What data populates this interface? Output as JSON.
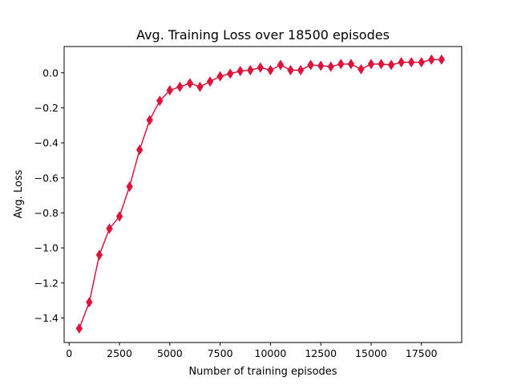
{
  "chart_data": {
    "type": "line",
    "title": "Avg. Training Loss over 18500 episodes",
    "xlabel": "Number of training episodes",
    "ylabel": "Avg. Loss",
    "xlim": [
      -250,
      19500
    ],
    "ylim": [
      -1.54,
      0.15
    ],
    "xticks": [
      0,
      2500,
      5000,
      7500,
      10000,
      12500,
      15000,
      17500
    ],
    "xtick_labels": [
      "0",
      "2500",
      "5000",
      "7500",
      "10000",
      "12500",
      "15000",
      "17500"
    ],
    "yticks": [
      -1.4,
      -1.2,
      -1.0,
      -0.8,
      -0.6,
      -0.4,
      -0.2,
      0.0
    ],
    "ytick_labels": [
      "−1.4",
      "−1.2",
      "−1.0",
      "−0.8",
      "−0.6",
      "−0.4",
      "−0.2",
      "0.0"
    ],
    "grid": false,
    "color": "#dc143c",
    "marker": "thin-diamond",
    "series": [
      {
        "x": [
          500,
          1000,
          1500,
          2000,
          2500,
          3000,
          3500,
          4000,
          4500,
          5000,
          5500,
          6000,
          6500,
          7000,
          7500,
          8000,
          8500,
          9000,
          9500,
          10000,
          10500,
          11000,
          11500,
          12000,
          12500,
          13000,
          13500,
          14000,
          14500,
          15000,
          15500,
          16000,
          16500,
          17000,
          17500,
          18000,
          18500
        ],
        "values": [
          -1.46,
          -1.31,
          -1.04,
          -0.89,
          -0.82,
          -0.65,
          -0.44,
          -0.27,
          -0.16,
          -0.1,
          -0.08,
          -0.06,
          -0.08,
          -0.05,
          -0.02,
          -0.005,
          0.01,
          0.015,
          0.03,
          0.015,
          0.045,
          0.015,
          0.015,
          0.045,
          0.04,
          0.035,
          0.05,
          0.05,
          0.02,
          0.05,
          0.05,
          0.045,
          0.06,
          0.06,
          0.06,
          0.075,
          0.075
        ]
      }
    ]
  }
}
